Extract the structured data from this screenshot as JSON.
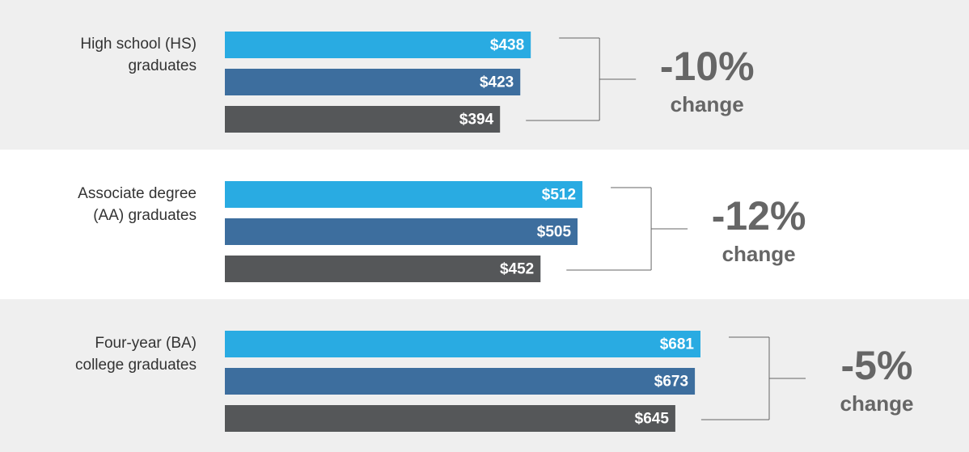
{
  "chart_data": {
    "type": "bar",
    "categories": [
      [
        "High school (HS)",
        "graduates"
      ],
      [
        "Associate degree",
        "(AA) graduates"
      ],
      [
        "Four-year (BA)",
        "college graduates"
      ]
    ],
    "series": [
      {
        "color": "#29abe2",
        "values": [
          438,
          512,
          681
        ],
        "value_labels": [
          "$438",
          "$512",
          "$681"
        ]
      },
      {
        "color": "#3d6e9e",
        "values": [
          423,
          505,
          673
        ],
        "value_labels": [
          "$423",
          "$505",
          "$673"
        ]
      },
      {
        "color": "#555759",
        "values": [
          394,
          452,
          645
        ],
        "value_labels": [
          "$394",
          "$452",
          "$645"
        ]
      }
    ],
    "annotations": [
      [
        "-10%",
        "change"
      ],
      [
        "-12%",
        "change"
      ],
      [
        "-5%",
        "change"
      ]
    ],
    "band_colors": [
      "#efefef",
      "#ffffff",
      "#efefef"
    ]
  }
}
